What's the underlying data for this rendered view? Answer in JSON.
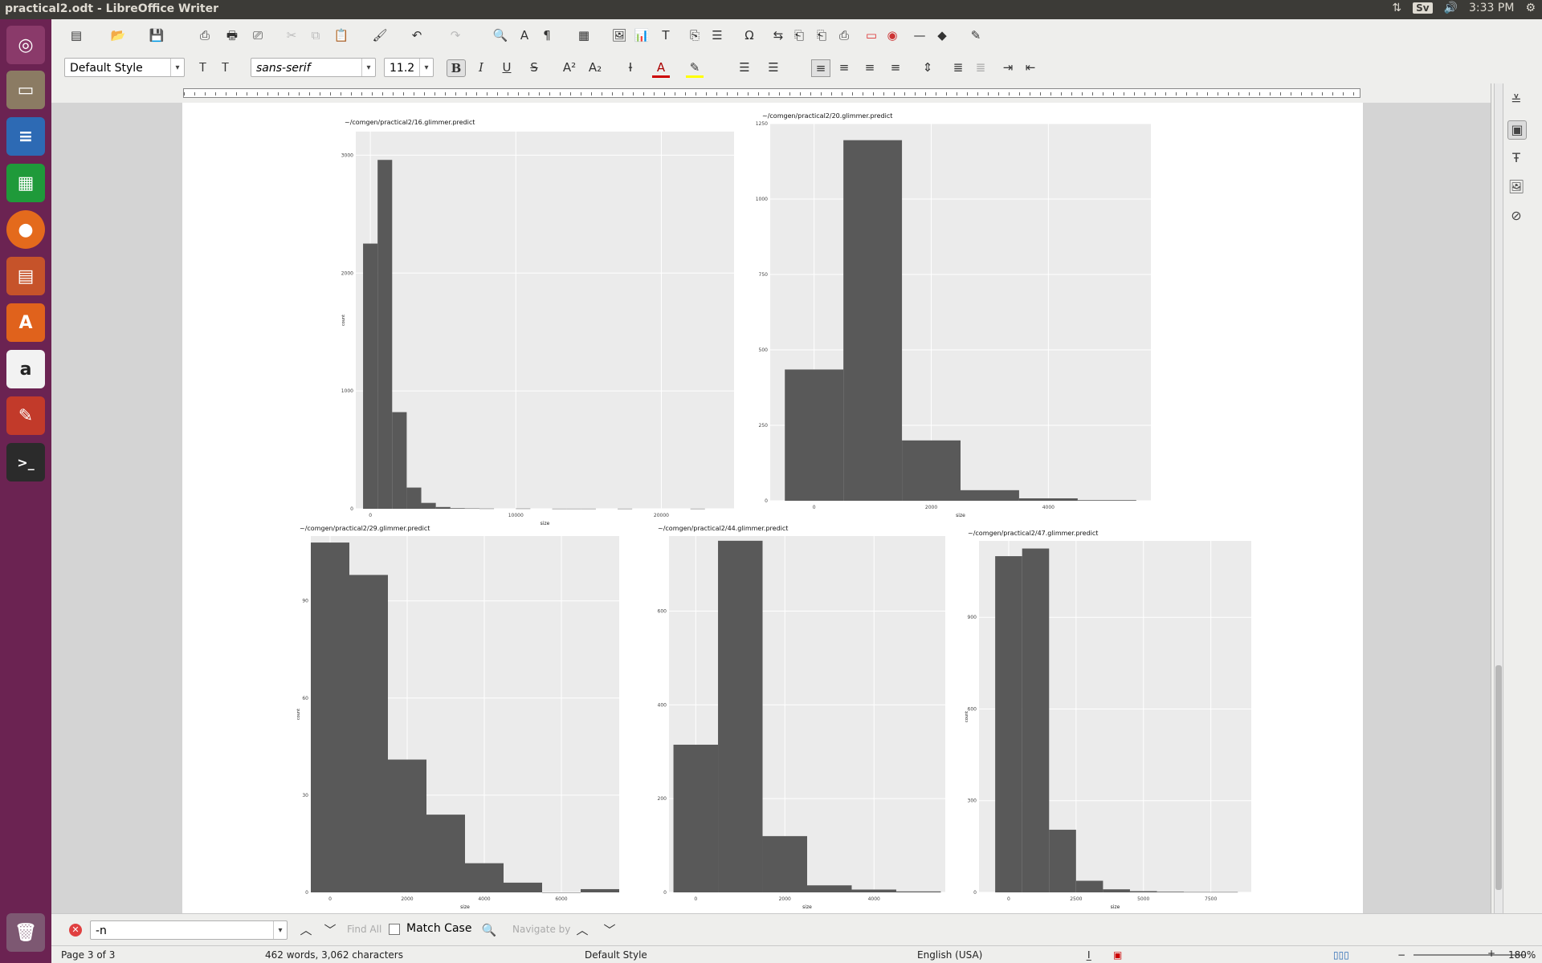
{
  "window": {
    "title": "practical2.odt - LibreOffice Writer"
  },
  "tray": {
    "keyboard": "Sv",
    "time": "3:33 PM"
  },
  "formatting": {
    "paragraph_style": "Default Style",
    "font_name": "sans-serif",
    "font_size": "11.2",
    "bold": "B",
    "italic": "I",
    "underline": "U",
    "strike": "S"
  },
  "findbar": {
    "search_value": "-n",
    "find_all": "Find All",
    "match_case": "Match Case",
    "navigate_by": "Navigate by"
  },
  "status": {
    "page": "Page 3 of 3",
    "words": "462 words, 3,062 characters",
    "style": "Default Style",
    "language": "English (USA)",
    "zoom": "180%"
  },
  "colors": {
    "plot_bg": "#ebebeb",
    "bar": "#595959",
    "grid": "#ffffff"
  },
  "chart_data": [
    {
      "type": "bar",
      "title": "~/comgen/practical2/16.glimmer.predict",
      "xlabel": "size",
      "ylabel": "count",
      "xticks": [
        "0",
        "10000",
        "20000"
      ],
      "yticks": [
        "0",
        "1000",
        "2000",
        "3000"
      ],
      "ylim": [
        0,
        3200
      ],
      "xlim": [
        -1000,
        25000
      ],
      "x": [
        0,
        1000,
        2000,
        3000,
        4000,
        5000,
        6000,
        7000,
        8000,
        10500,
        13000,
        14000,
        15000,
        17500,
        22500
      ],
      "values": [
        2250,
        2960,
        820,
        180,
        50,
        15,
        5,
        3,
        2,
        2,
        1,
        1,
        1,
        1,
        1
      ]
    },
    {
      "type": "bar",
      "title": "~/comgen/practical2/20.glimmer.predict",
      "xlabel": "size",
      "ylabel": "",
      "xticks": [
        "0",
        "2000",
        "4000"
      ],
      "yticks": [
        "0",
        "250",
        "500",
        "750",
        "1000",
        "1250"
      ],
      "ylim": [
        0,
        1250
      ],
      "xlim": [
        -750,
        5750
      ],
      "x": [
        0,
        1000,
        2000,
        3000,
        4000,
        5000
      ],
      "values": [
        435,
        1195,
        200,
        35,
        8,
        2
      ]
    },
    {
      "type": "bar",
      "title": "~/comgen/practical2/29.glimmer.predict",
      "xlabel": "size",
      "ylabel": "count",
      "xticks": [
        "0",
        "2000",
        "4000",
        "6000"
      ],
      "yticks": [
        "0",
        "30",
        "60",
        "90"
      ],
      "ylim": [
        0,
        110
      ],
      "xlim": [
        -500,
        7500
      ],
      "x": [
        0,
        1000,
        2000,
        3000,
        4000,
        5000,
        6000,
        7000
      ],
      "values": [
        108,
        98,
        41,
        24,
        9,
        3,
        0,
        1
      ]
    },
    {
      "type": "bar",
      "title": "~/comgen/practical2/44.glimmer.predict",
      "xlabel": "size",
      "ylabel": "",
      "xticks": [
        "0",
        "2000",
        "4000"
      ],
      "yticks": [
        "0",
        "200",
        "400",
        "600"
      ],
      "ylim": [
        0,
        760
      ],
      "xlim": [
        -600,
        5600
      ],
      "x": [
        0,
        1000,
        2000,
        3000,
        4000,
        5000
      ],
      "values": [
        315,
        750,
        120,
        15,
        6,
        2
      ]
    },
    {
      "type": "bar",
      "title": "~/comgen/practical2/47.glimmer.predict",
      "xlabel": "size",
      "ylabel": "count",
      "xticks": [
        "0",
        "2500",
        "5000",
        "7500"
      ],
      "yticks": [
        "0",
        "300",
        "600",
        "900"
      ],
      "ylim": [
        0,
        1150
      ],
      "xlim": [
        -1100,
        9000
      ],
      "x": [
        0,
        1000,
        2000,
        3000,
        4000,
        5000,
        6000,
        7000,
        8000
      ],
      "values": [
        1100,
        1125,
        205,
        38,
        10,
        4,
        2,
        1,
        1
      ]
    }
  ]
}
